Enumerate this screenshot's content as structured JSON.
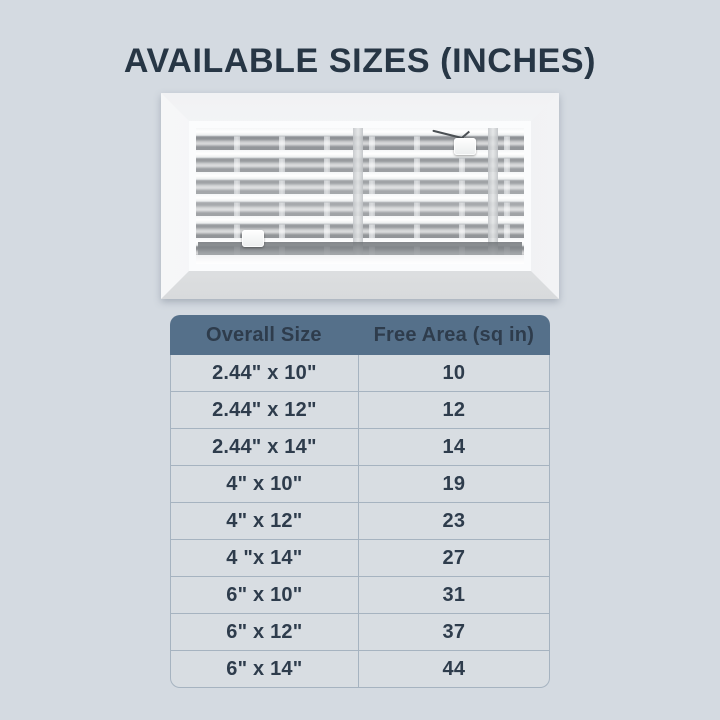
{
  "page": {
    "title": "AVAILABLE SIZES (INCHES)"
  },
  "product_image": {
    "description": "White louvered air register with beveled frame and two damper slider tabs"
  },
  "table": {
    "headers": [
      "Overall Size",
      "Free Area (sq in)"
    ],
    "rows": [
      {
        "size": "2.44\" x 10\"",
        "free_area": "10"
      },
      {
        "size": "2.44\" x 12\"",
        "free_area": "12"
      },
      {
        "size": "2.44\" x 14\"",
        "free_area": "14"
      },
      {
        "size": "4\" x 10\"",
        "free_area": "19"
      },
      {
        "size": "4\" x 12\"",
        "free_area": "23"
      },
      {
        "size": "4 \"x 14\"",
        "free_area": "27"
      },
      {
        "size": "6\" x 10\"",
        "free_area": "31"
      },
      {
        "size": "6\" x 12\"",
        "free_area": "37"
      },
      {
        "size": "6\" x 14\"",
        "free_area": "44"
      }
    ]
  },
  "colors": {
    "background": "#d4dae1",
    "title_text": "#273645",
    "header_bg": "#55708a",
    "header_text": "#ffffff",
    "row_bg": "#d8dde2",
    "row_text": "#2e3c4c",
    "table_border": "#a6b3c0"
  }
}
